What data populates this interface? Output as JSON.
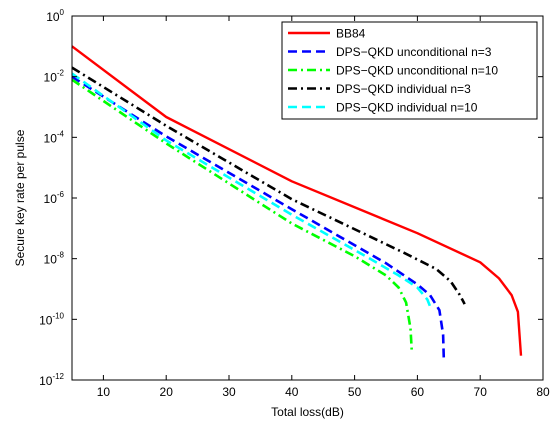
{
  "chart_data": {
    "type": "line",
    "title": "",
    "xlabel": "Total loss(dB)",
    "ylabel": "Secure key rate per pulse",
    "xlim": [
      5,
      80
    ],
    "ylim_log10": [
      -12,
      0
    ],
    "y_scale": "log",
    "grid": false,
    "legend_position": "top-right",
    "x_ticks": [
      10,
      20,
      30,
      40,
      50,
      60,
      70,
      80
    ],
    "y_ticks": [
      {
        "exp": 0,
        "base": "10",
        "sup": "0"
      },
      {
        "exp": -2,
        "base": "10",
        "sup": "-2"
      },
      {
        "exp": -4,
        "base": "10",
        "sup": "-4"
      },
      {
        "exp": -6,
        "base": "10",
        "sup": "-6"
      },
      {
        "exp": -8,
        "base": "10",
        "sup": "-8"
      },
      {
        "exp": -10,
        "base": "10",
        "sup": "-10"
      },
      {
        "exp": -12,
        "base": "10",
        "sup": "-12"
      }
    ],
    "series": [
      {
        "name": "BB84",
        "color": "#ff0000",
        "style": "solid",
        "x": [
          5,
          20,
          40,
          60,
          70,
          73,
          75,
          76,
          76.5
        ],
        "log10_y": [
          -1.0,
          -3.33,
          -5.45,
          -7.16,
          -8.12,
          -8.65,
          -9.2,
          -9.75,
          -11.2
        ]
      },
      {
        "name": "DPS−QKD unconditional n=3",
        "color": "#0000ff",
        "style": "dash",
        "x": [
          5,
          20,
          40,
          55,
          60,
          62,
          63.5,
          64.1,
          64.2
        ],
        "log10_y": [
          -2.0,
          -3.97,
          -6.37,
          -8.15,
          -8.85,
          -9.2,
          -9.7,
          -10.5,
          -11.3
        ]
      },
      {
        "name": "DPS−QKD unconditional n=10",
        "color": "#00ff00",
        "style": "dashdot",
        "x": [
          5,
          20,
          40,
          50,
          55,
          57,
          58.2,
          58.9,
          59.1
        ],
        "log10_y": [
          -2.1,
          -4.2,
          -6.84,
          -7.92,
          -8.55,
          -8.95,
          -9.45,
          -10.3,
          -11.0
        ]
      },
      {
        "name": "DPS−QKD individual n=3",
        "color": "#000000",
        "style": "dashdot",
        "x": [
          5,
          20,
          40,
          58,
          63,
          65.3,
          66.7,
          67.4,
          67.5
        ],
        "log10_y": [
          -1.7,
          -3.62,
          -6.04,
          -7.82,
          -8.34,
          -8.75,
          -9.18,
          -9.45,
          -9.5
        ]
      },
      {
        "name": "DPS−QKD individual n=10",
        "color": "#00ffff",
        "style": "dash",
        "x": [
          5,
          20,
          40,
          52,
          57,
          60,
          61.6,
          62.1,
          62.2
        ],
        "log10_y": [
          -1.9,
          -4.1,
          -6.55,
          -7.95,
          -8.55,
          -8.95,
          -9.35,
          -9.62,
          -9.65
        ]
      }
    ]
  }
}
